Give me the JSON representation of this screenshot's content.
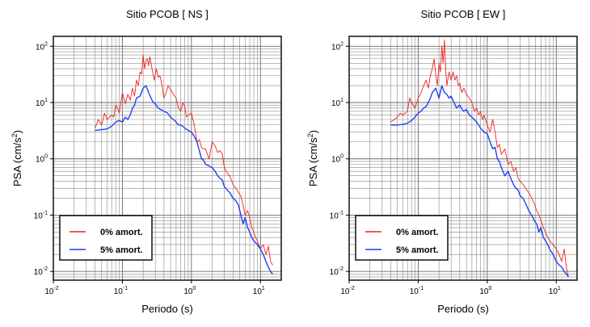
{
  "chart_data": [
    {
      "type": "line",
      "title": "Sitio PCOB [ NS ]",
      "xlabel": "Periodo (s)",
      "ylabel_main": "PSA (cm/s",
      "ylabel_sup": "2",
      "ylabel_end": ")",
      "x_scale": "log",
      "y_scale": "log",
      "xlim": [
        0.01,
        20
      ],
      "ylim": [
        0.007,
        150
      ],
      "grid": true,
      "legend_position": "bottom-left",
      "x_ticks": [
        {
          "value": 0.01,
          "base": "10",
          "exp": "-2"
        },
        {
          "value": 0.1,
          "base": "10",
          "exp": "-1"
        },
        {
          "value": 1,
          "base": "10",
          "exp": "0"
        },
        {
          "value": 10,
          "base": "10",
          "exp": "1"
        }
      ],
      "y_ticks": [
        {
          "value": 0.01,
          "base": "10",
          "exp": "-2"
        },
        {
          "value": 0.1,
          "base": "10",
          "exp": "-1"
        },
        {
          "value": 1,
          "base": "10",
          "exp": "0"
        },
        {
          "value": 10,
          "base": "10",
          "exp": "1"
        },
        {
          "value": 100,
          "base": "10",
          "exp": "2"
        }
      ],
      "series": [
        {
          "name": "0% amort.",
          "color": "#ee2222",
          "x": [
            0.04,
            0.045,
            0.05,
            0.055,
            0.06,
            0.07,
            0.075,
            0.08,
            0.085,
            0.09,
            0.1,
            0.11,
            0.12,
            0.13,
            0.14,
            0.15,
            0.16,
            0.17,
            0.18,
            0.19,
            0.2,
            0.21,
            0.22,
            0.23,
            0.24,
            0.25,
            0.27,
            0.29,
            0.31,
            0.33,
            0.35,
            0.37,
            0.4,
            0.43,
            0.46,
            0.5,
            0.55,
            0.6,
            0.65,
            0.7,
            0.75,
            0.8,
            0.85,
            0.9,
            1.0,
            1.1,
            1.2,
            1.3,
            1.4,
            1.5,
            1.6,
            1.8,
            2.0,
            2.2,
            2.4,
            2.6,
            2.8,
            3.0,
            3.3,
            3.6,
            4.0,
            4.4,
            4.8,
            5.2,
            5.6,
            6.0,
            6.5,
            7.0,
            7.5,
            8.0,
            8.5,
            9.0,
            10,
            11,
            12,
            13,
            14,
            15
          ],
          "values": [
            3.5,
            5.0,
            4.0,
            6.5,
            5.0,
            6.0,
            5.5,
            9.0,
            8.0,
            6.5,
            15.0,
            9.5,
            14.0,
            11.0,
            18.0,
            13.0,
            25.0,
            20.0,
            35.0,
            32.0,
            70.0,
            40.0,
            55.0,
            60.0,
            45.0,
            65.0,
            38.0,
            25.0,
            40.0,
            28.0,
            30.0,
            22.0,
            12.0,
            15.0,
            20.0,
            17.0,
            14.0,
            12.0,
            8.0,
            7.0,
            10.0,
            8.5,
            5.5,
            6.0,
            6.5,
            4.0,
            2.0,
            2.2,
            1.6,
            1.5,
            1.5,
            1.0,
            2.0,
            1.7,
            1.3,
            1.4,
            1.2,
            0.7,
            0.55,
            0.5,
            0.35,
            0.3,
            0.25,
            0.22,
            0.15,
            0.1,
            0.12,
            0.09,
            0.06,
            0.05,
            0.04,
            0.035,
            0.025,
            0.03,
            0.02,
            0.028,
            0.015,
            0.013
          ]
        },
        {
          "name": "5% amort.",
          "color": "#1f3ff5",
          "x": [
            0.04,
            0.05,
            0.06,
            0.07,
            0.08,
            0.09,
            0.1,
            0.11,
            0.12,
            0.13,
            0.14,
            0.15,
            0.16,
            0.18,
            0.2,
            0.22,
            0.24,
            0.26,
            0.28,
            0.3,
            0.33,
            0.36,
            0.4,
            0.45,
            0.5,
            0.55,
            0.6,
            0.65,
            0.7,
            0.75,
            0.8,
            0.9,
            1.0,
            1.1,
            1.2,
            1.3,
            1.4,
            1.5,
            1.6,
            1.8,
            2.0,
            2.2,
            2.4,
            2.6,
            2.8,
            3.0,
            3.3,
            3.6,
            4.0,
            4.4,
            4.8,
            5.2,
            5.6,
            6.0,
            6.5,
            7.0,
            7.5,
            8.0,
            9.0,
            10,
            11,
            12,
            13,
            14,
            15
          ],
          "values": [
            3.2,
            3.3,
            3.4,
            3.8,
            4.5,
            4.8,
            4.5,
            5.5,
            5.0,
            6.0,
            8.0,
            9.0,
            12.0,
            13.0,
            18.0,
            20.0,
            15.0,
            12.0,
            10.0,
            9.5,
            8.0,
            7.5,
            7.0,
            6.5,
            5.5,
            5.0,
            4.5,
            4.0,
            4.0,
            3.8,
            3.5,
            3.2,
            3.0,
            2.5,
            2.0,
            1.4,
            1.0,
            0.95,
            0.8,
            0.75,
            0.7,
            0.6,
            0.5,
            0.45,
            0.42,
            0.32,
            0.28,
            0.25,
            0.2,
            0.18,
            0.15,
            0.1,
            0.07,
            0.09,
            0.06,
            0.05,
            0.04,
            0.035,
            0.03,
            0.025,
            0.02,
            0.015,
            0.012,
            0.01,
            0.009
          ]
        }
      ]
    },
    {
      "type": "line",
      "title": "Sitio PCOB [ EW ]",
      "xlabel": "Periodo (s)",
      "ylabel_main": "PSA (cm/s",
      "ylabel_sup": "2",
      "ylabel_end": ")",
      "x_scale": "log",
      "y_scale": "log",
      "xlim": [
        0.01,
        20
      ],
      "ylim": [
        0.007,
        150
      ],
      "grid": true,
      "legend_position": "bottom-left",
      "x_ticks": [
        {
          "value": 0.01,
          "base": "10",
          "exp": "-2"
        },
        {
          "value": 0.1,
          "base": "10",
          "exp": "-1"
        },
        {
          "value": 1,
          "base": "10",
          "exp": "0"
        },
        {
          "value": 10,
          "base": "10",
          "exp": "1"
        }
      ],
      "y_ticks": [
        {
          "value": 0.01,
          "base": "10",
          "exp": "-2"
        },
        {
          "value": 0.1,
          "base": "10",
          "exp": "-1"
        },
        {
          "value": 1,
          "base": "10",
          "exp": "0"
        },
        {
          "value": 10,
          "base": "10",
          "exp": "1"
        },
        {
          "value": 100,
          "base": "10",
          "exp": "2"
        }
      ],
      "series": [
        {
          "name": "0% amort.",
          "color": "#ee2222",
          "x": [
            0.04,
            0.045,
            0.05,
            0.055,
            0.06,
            0.07,
            0.075,
            0.08,
            0.09,
            0.1,
            0.11,
            0.12,
            0.13,
            0.14,
            0.15,
            0.16,
            0.17,
            0.18,
            0.19,
            0.2,
            0.21,
            0.22,
            0.23,
            0.24,
            0.25,
            0.26,
            0.28,
            0.3,
            0.32,
            0.34,
            0.36,
            0.38,
            0.4,
            0.43,
            0.46,
            0.5,
            0.55,
            0.6,
            0.65,
            0.7,
            0.75,
            0.8,
            0.85,
            0.9,
            1.0,
            1.1,
            1.2,
            1.3,
            1.4,
            1.5,
            1.6,
            1.8,
            2.0,
            2.2,
            2.4,
            2.6,
            2.8,
            3.0,
            3.3,
            3.6,
            4.0,
            4.4,
            4.8,
            5.2,
            5.6,
            6.0,
            6.5,
            7.0,
            7.5,
            8.0,
            9.0,
            10,
            11,
            12,
            13,
            14,
            15
          ],
          "values": [
            4.5,
            5.0,
            5.5,
            6.5,
            6.0,
            7.0,
            12.0,
            10.0,
            8.0,
            12.0,
            15.0,
            20.0,
            25.0,
            18.0,
            30.0,
            40.0,
            60.0,
            30.0,
            20.0,
            50.0,
            35.0,
            100.0,
            50.0,
            130.0,
            40.0,
            20.0,
            35.0,
            25.0,
            35.0,
            25.0,
            30.0,
            20.0,
            22.0,
            15.0,
            18.0,
            14.0,
            12.0,
            10.0,
            7.0,
            8.0,
            6.0,
            7.0,
            5.0,
            6.0,
            4.0,
            3.0,
            5.0,
            3.0,
            1.6,
            1.8,
            1.2,
            1.5,
            0.8,
            0.9,
            0.6,
            0.7,
            0.45,
            0.4,
            0.35,
            0.3,
            0.25,
            0.2,
            0.16,
            0.12,
            0.1,
            0.08,
            0.06,
            0.05,
            0.04,
            0.035,
            0.03,
            0.025,
            0.02,
            0.015,
            0.025,
            0.012,
            0.008
          ]
        },
        {
          "name": "5% amort.",
          "color": "#1f3ff5",
          "x": [
            0.04,
            0.05,
            0.06,
            0.07,
            0.08,
            0.09,
            0.1,
            0.11,
            0.12,
            0.13,
            0.14,
            0.15,
            0.16,
            0.18,
            0.2,
            0.22,
            0.24,
            0.26,
            0.28,
            0.3,
            0.33,
            0.36,
            0.4,
            0.45,
            0.5,
            0.55,
            0.6,
            0.65,
            0.7,
            0.75,
            0.8,
            0.9,
            1.0,
            1.1,
            1.2,
            1.3,
            1.4,
            1.5,
            1.6,
            1.8,
            2.0,
            2.2,
            2.4,
            2.6,
            2.8,
            3.0,
            3.3,
            3.6,
            4.0,
            4.4,
            4.8,
            5.2,
            5.6,
            6.0,
            6.5,
            7.0,
            7.5,
            8.0,
            9.0,
            10,
            11,
            12,
            13,
            14,
            15
          ],
          "values": [
            4.0,
            4.0,
            4.1,
            4.3,
            4.8,
            5.5,
            6.5,
            7.0,
            8.0,
            8.5,
            10.0,
            12.0,
            15.0,
            18.0,
            12.0,
            20.0,
            15.0,
            14.0,
            12.0,
            13.0,
            10.0,
            8.0,
            9.0,
            7.0,
            7.5,
            6.0,
            5.5,
            5.0,
            4.5,
            4.0,
            3.5,
            3.0,
            2.8,
            2.0,
            1.5,
            1.6,
            1.0,
            0.9,
            0.7,
            0.5,
            0.6,
            0.45,
            0.35,
            0.3,
            0.28,
            0.22,
            0.2,
            0.16,
            0.12,
            0.1,
            0.08,
            0.07,
            0.05,
            0.06,
            0.04,
            0.035,
            0.03,
            0.025,
            0.02,
            0.015,
            0.013,
            0.012,
            0.01,
            0.009,
            0.008
          ]
        }
      ]
    }
  ]
}
